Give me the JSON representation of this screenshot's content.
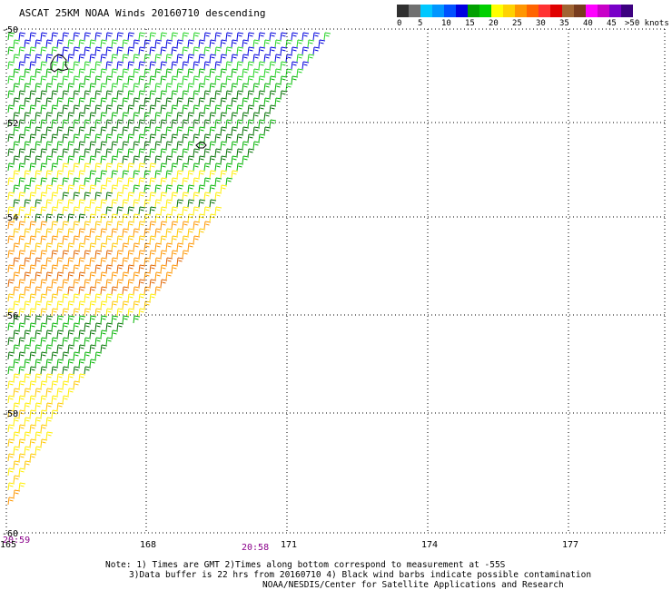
{
  "title": "ASCAT 25KM NOAA Winds 20160710 descending",
  "scale": {
    "unit_label": ">50 knots",
    "ticks": [
      "0",
      "5",
      "10",
      "15",
      "20",
      "25",
      "30",
      "35",
      "40",
      "45"
    ],
    "colors": [
      "#303030",
      "#707070",
      "#00c8ff",
      "#0096ff",
      "#0050ff",
      "#0000e0",
      "#00a000",
      "#00d000",
      "#ffff00",
      "#ffd200",
      "#ff9600",
      "#ff6400",
      "#ff3232",
      "#e00000",
      "#a06432",
      "#783c1e",
      "#ff00ff",
      "#c800c8",
      "#7800c8",
      "#3c0080"
    ]
  },
  "axes": {
    "lat_labels": [
      "-50",
      "-52",
      "-54",
      "-56",
      "-58",
      "-60"
    ],
    "lon_labels": [
      "165",
      "168",
      "171",
      "174",
      "177"
    ]
  },
  "times": {
    "left": "20:59",
    "middle": "20:58"
  },
  "notes": {
    "line1": "Note: 1) Times are GMT 2)Times along bottom correspond to measurement at -55S",
    "line2": "3)Data buffer is 22 hrs from 20160710 4) Black wind barbs indicate possible contamination",
    "line3": "NOAA/NESDIS/Center for Satellite Applications and Research"
  },
  "wind_colors": {
    "blue": "#0000dd",
    "green_dark": "#007000",
    "green": "#00b400",
    "green_light": "#22d322",
    "yellow": "#ffee00",
    "orange_light": "#ffc800",
    "orange": "#ff9600",
    "orange_dark": "#e06400"
  }
}
